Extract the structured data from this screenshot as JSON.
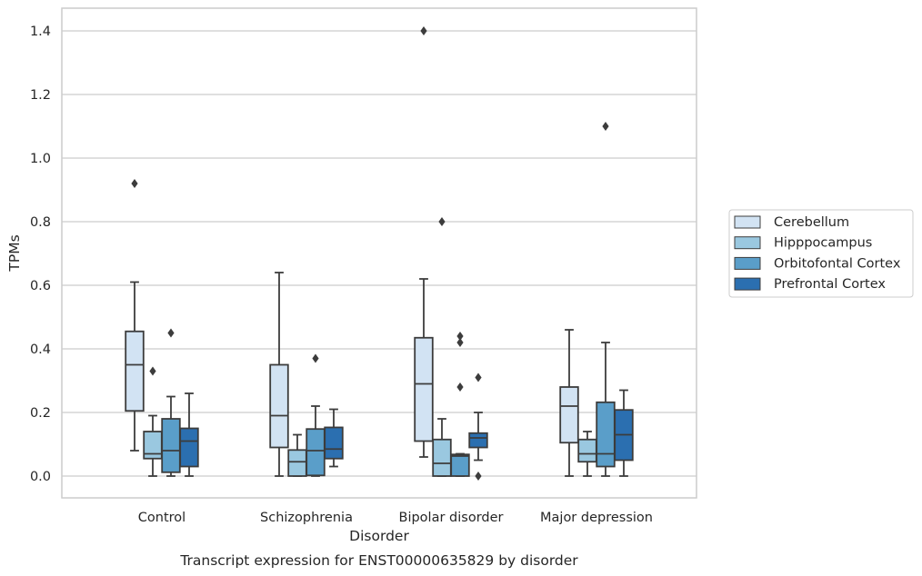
{
  "chart_data": {
    "type": "box",
    "title": "",
    "caption": "Transcript expression for ENST00000635829 by disorder",
    "xlabel": "Disorder",
    "ylabel": "TPMs",
    "ylim": [
      -0.07,
      1.47
    ],
    "yticks": [
      "0.0",
      "0.2",
      "0.4",
      "0.6",
      "0.8",
      "1.0",
      "1.2",
      "1.4"
    ],
    "grid": "horizontal",
    "legend_position": "right",
    "categories": [
      "Control",
      "Schizophrenia",
      "Bipolar disorder",
      "Major depression"
    ],
    "series": [
      {
        "name": "Cerebellum",
        "color": "#d2e3f3",
        "boxes": [
          {
            "whisker_low": 0.08,
            "q1": 0.205,
            "median": 0.35,
            "q3": 0.455,
            "whisker_high": 0.61,
            "outliers": [
              0.92
            ]
          },
          {
            "whisker_low": 0.0,
            "q1": 0.09,
            "median": 0.19,
            "q3": 0.35,
            "whisker_high": 0.64,
            "outliers": []
          },
          {
            "whisker_low": 0.06,
            "q1": 0.11,
            "median": 0.29,
            "q3": 0.435,
            "whisker_high": 0.62,
            "outliers": [
              1.4
            ]
          },
          {
            "whisker_low": 0.0,
            "q1": 0.105,
            "median": 0.22,
            "q3": 0.28,
            "whisker_high": 0.46,
            "outliers": []
          }
        ]
      },
      {
        "name": "Hipppocampus",
        "color": "#9ac8e0",
        "boxes": [
          {
            "whisker_low": 0.0,
            "q1": 0.055,
            "median": 0.07,
            "q3": 0.14,
            "whisker_high": 0.19,
            "outliers": [
              0.33
            ]
          },
          {
            "whisker_low": 0.0,
            "q1": 0.0,
            "median": 0.045,
            "q3": 0.082,
            "whisker_high": 0.13,
            "outliers": []
          },
          {
            "whisker_low": 0.0,
            "q1": 0.0,
            "median": 0.04,
            "q3": 0.115,
            "whisker_high": 0.18,
            "outliers": [
              0.8
            ]
          },
          {
            "whisker_low": 0.0,
            "q1": 0.045,
            "median": 0.07,
            "q3": 0.115,
            "whisker_high": 0.14,
            "outliers": []
          }
        ]
      },
      {
        "name": "Orbitofontal Cortex",
        "color": "#5a9ec9",
        "boxes": [
          {
            "whisker_low": 0.0,
            "q1": 0.012,
            "median": 0.08,
            "q3": 0.18,
            "whisker_high": 0.25,
            "outliers": [
              0.45
            ]
          },
          {
            "whisker_low": 0.0,
            "q1": 0.002,
            "median": 0.08,
            "q3": 0.148,
            "whisker_high": 0.22,
            "outliers": [
              0.37
            ]
          },
          {
            "whisker_low": 0.0,
            "q1": 0.0,
            "median": 0.063,
            "q3": 0.068,
            "whisker_high": 0.07,
            "outliers": [
              0.28,
              0.42,
              0.44
            ]
          },
          {
            "whisker_low": 0.0,
            "q1": 0.03,
            "median": 0.07,
            "q3": 0.232,
            "whisker_high": 0.42,
            "outliers": [
              1.1
            ]
          }
        ]
      },
      {
        "name": "Prefrontal Cortex",
        "color": "#2b6fb0",
        "boxes": [
          {
            "whisker_low": 0.0,
            "q1": 0.03,
            "median": 0.11,
            "q3": 0.15,
            "whisker_high": 0.26,
            "outliers": []
          },
          {
            "whisker_low": 0.03,
            "q1": 0.055,
            "median": 0.085,
            "q3": 0.153,
            "whisker_high": 0.21,
            "outliers": []
          },
          {
            "whisker_low": 0.05,
            "q1": 0.09,
            "median": 0.12,
            "q3": 0.135,
            "whisker_high": 0.2,
            "outliers": [
              0.0,
              0.31
            ]
          },
          {
            "whisker_low": 0.0,
            "q1": 0.05,
            "median": 0.13,
            "q3": 0.208,
            "whisker_high": 0.27,
            "outliers": []
          }
        ]
      }
    ]
  }
}
